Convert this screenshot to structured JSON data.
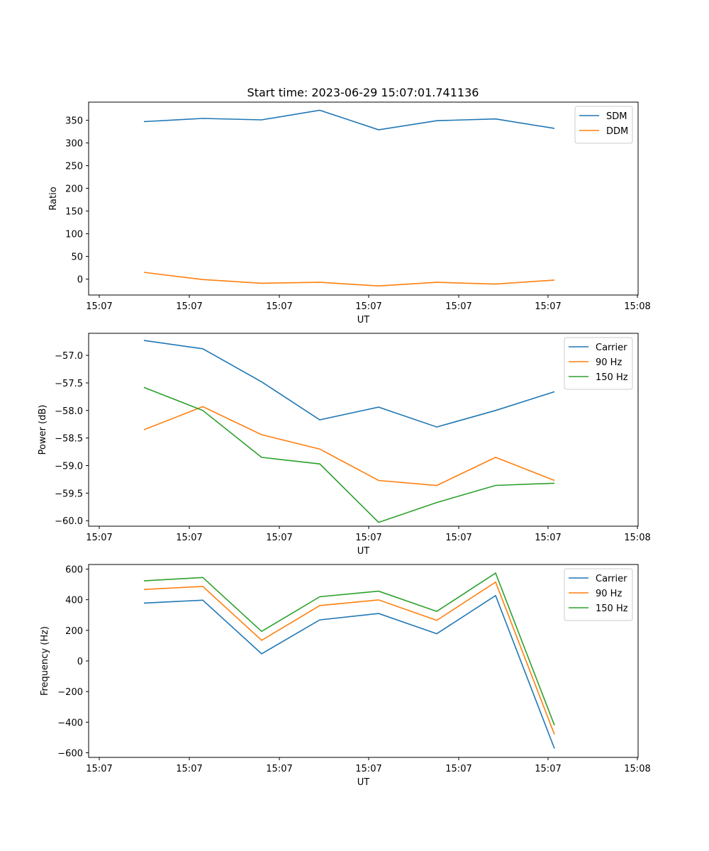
{
  "title": "Start time: 2023-06-29 15:07:01.741136",
  "chart_data": [
    {
      "type": "line",
      "xlabel": "UT",
      "ylabel": "Ratio",
      "xtick_labels": [
        "15:07",
        "15:07",
        "15:07",
        "15:07",
        "15:07",
        "15:07",
        "15:07"
      ],
      "xend_label": "15:08",
      "yticks": [
        0,
        50,
        100,
        150,
        200,
        250,
        300,
        350
      ],
      "ylim": [
        -35,
        390
      ],
      "legend": "top-right",
      "series": [
        {
          "name": "SDM",
          "color": "#1f77b4",
          "values": [
            347,
            354,
            351,
            372,
            329,
            349,
            353,
            332
          ]
        },
        {
          "name": "DDM",
          "color": "#ff7f0e",
          "values": [
            15,
            -1,
            -9,
            -7,
            -15,
            -7,
            -11,
            -2
          ]
        }
      ]
    },
    {
      "type": "line",
      "xlabel": "UT",
      "ylabel": "Power (dB)",
      "xtick_labels": [
        "15:07",
        "15:07",
        "15:07",
        "15:07",
        "15:07",
        "15:07",
        "15:07"
      ],
      "xend_label": "15:08",
      "yticks": [
        -57.0,
        -57.5,
        -58.0,
        -58.5,
        -59.0,
        -59.5,
        -60.0
      ],
      "ylim": [
        -60.1,
        -56.6
      ],
      "legend": "top-right",
      "series": [
        {
          "name": "Carrier",
          "color": "#1f77b4",
          "values": [
            -56.73,
            -56.88,
            -57.48,
            -58.17,
            -57.94,
            -58.3,
            -58.0,
            -57.66
          ]
        },
        {
          "name": "90 Hz",
          "color": "#ff7f0e",
          "values": [
            -58.35,
            -57.93,
            -58.44,
            -58.7,
            -59.27,
            -59.36,
            -58.85,
            -59.27
          ]
        },
        {
          "name": "150 Hz",
          "color": "#2ca02c",
          "values": [
            -57.58,
            -58.0,
            -58.85,
            -58.97,
            -60.03,
            -59.67,
            -59.36,
            -59.32
          ]
        }
      ]
    },
    {
      "type": "line",
      "xlabel": "UT",
      "ylabel": "Frequency (Hz)",
      "xtick_labels": [
        "15:07",
        "15:07",
        "15:07",
        "15:07",
        "15:07",
        "15:07",
        "15:07"
      ],
      "xend_label": "15:08",
      "yticks": [
        600,
        400,
        200,
        0,
        -200,
        -400,
        -600
      ],
      "ylim": [
        -630,
        630
      ],
      "legend": "top-right",
      "series": [
        {
          "name": "Carrier",
          "color": "#1f77b4",
          "values": [
            378,
            397,
            47,
            268,
            310,
            178,
            427,
            -572
          ]
        },
        {
          "name": "90 Hz",
          "color": "#ff7f0e",
          "values": [
            467,
            487,
            135,
            362,
            399,
            265,
            515,
            -480
          ]
        },
        {
          "name": "150 Hz",
          "color": "#2ca02c",
          "values": [
            523,
            545,
            193,
            419,
            456,
            324,
            574,
            -420
          ]
        }
      ]
    }
  ]
}
